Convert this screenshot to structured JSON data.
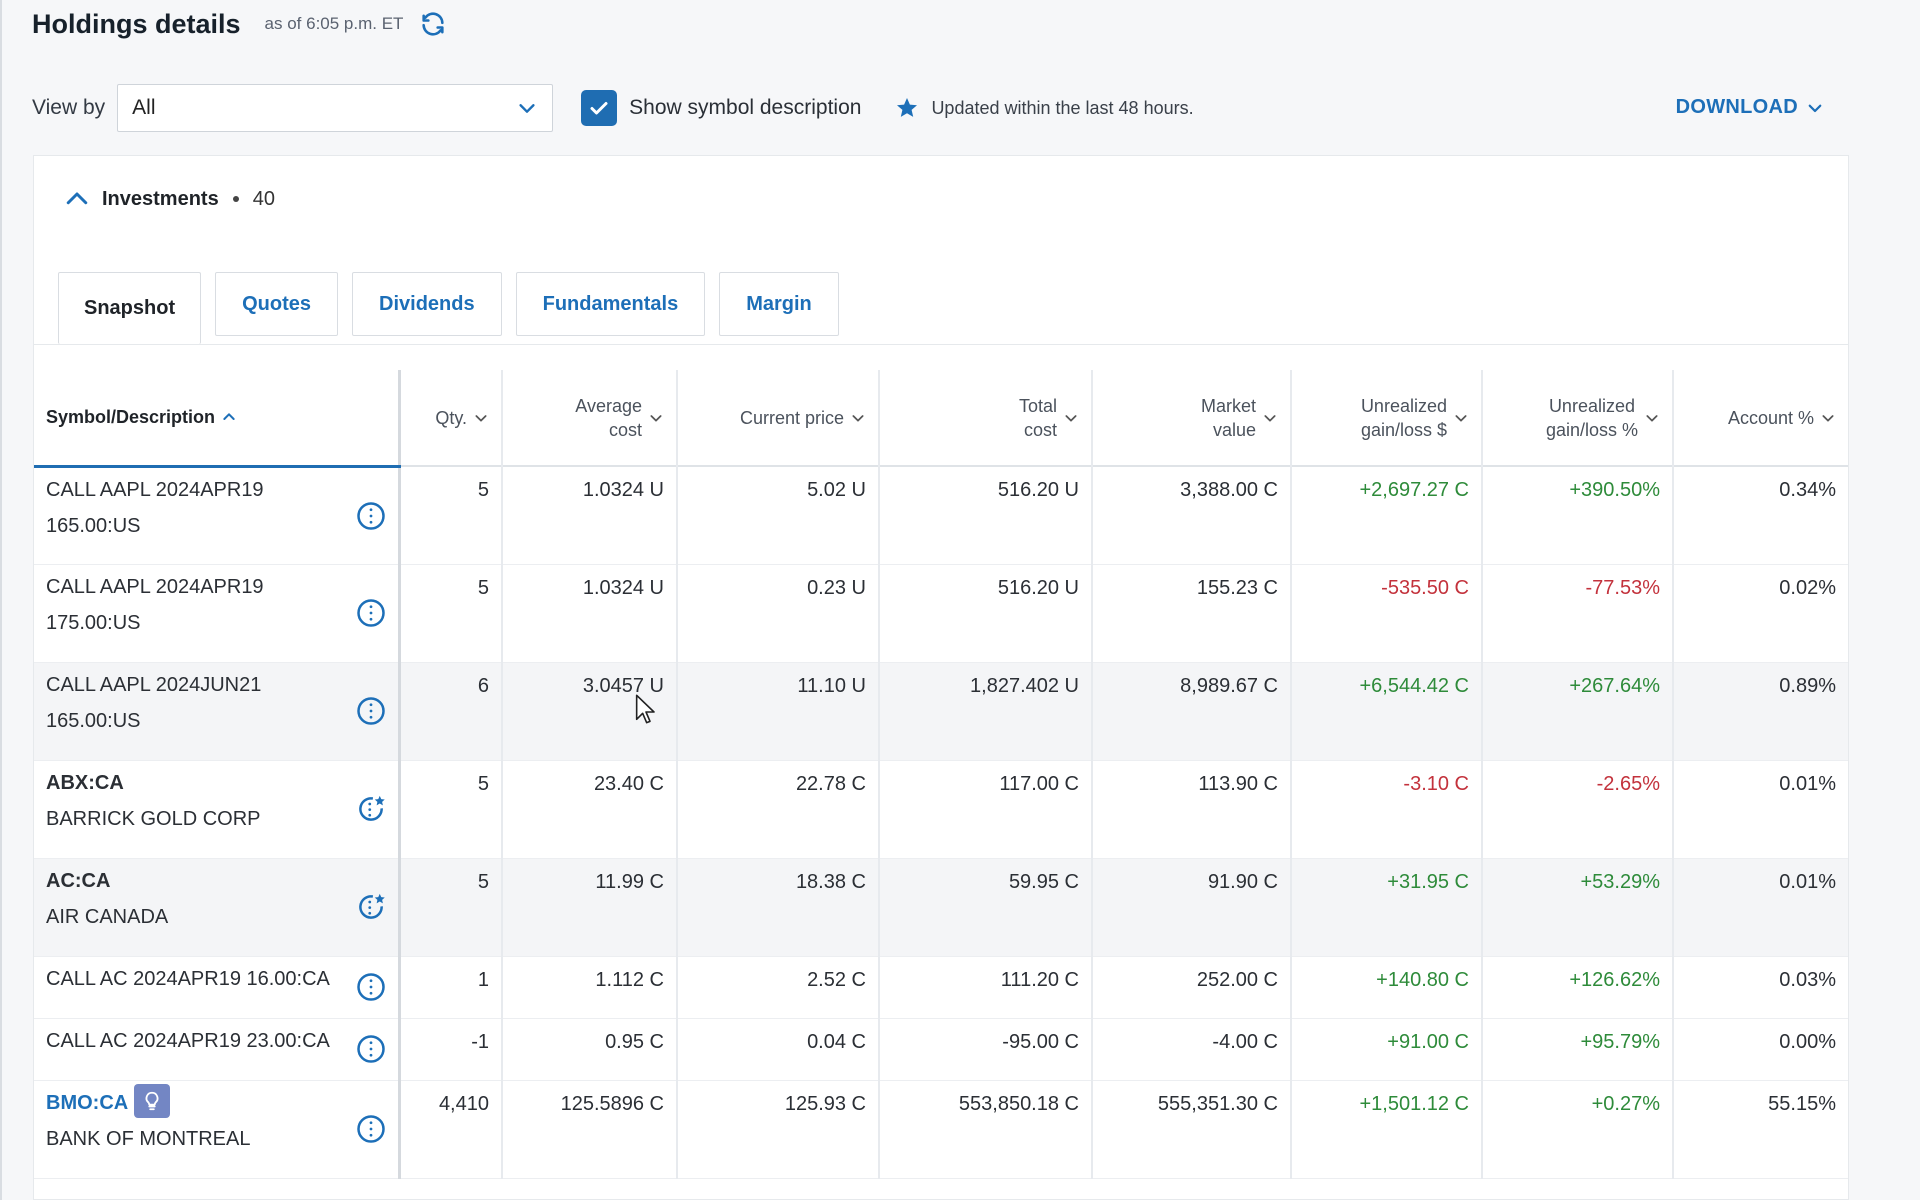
{
  "header": {
    "title": "Holdings details",
    "as_of": "as of 6:05 p.m. ET"
  },
  "toolbar": {
    "view_by_label": "View by",
    "view_by_value": "All",
    "show_symbol_description": "Show symbol description",
    "updated_note": "Updated within the last 48 hours.",
    "download": "DOWNLOAD"
  },
  "investments": {
    "title": "Investments",
    "count": "40"
  },
  "tabs": [
    {
      "label": "Snapshot",
      "active": true
    },
    {
      "label": "Quotes"
    },
    {
      "label": "Dividends"
    },
    {
      "label": "Fundamentals"
    },
    {
      "label": "Margin"
    }
  ],
  "columns": {
    "symbol": "Symbol/Description",
    "qty": "Qty.",
    "avg_cost_1": "Average",
    "avg_cost_2": "cost",
    "current_price": "Current price",
    "total_cost_1": "Total",
    "total_cost_2": "cost",
    "market_value_1": "Market",
    "market_value_2": "value",
    "ugl_dollar_1": "Unrealized",
    "ugl_dollar_2": "gain/loss $",
    "ugl_pct_1": "Unrealized",
    "ugl_pct_2": "gain/loss %",
    "account_pct": "Account %"
  },
  "rows": [
    {
      "line1": "CALL AAPL 2024APR19",
      "line2": "165.00:US",
      "qty": "5",
      "avg_cost": "1.0324 U",
      "current_price": "5.02 U",
      "total_cost": "516.20 U",
      "market_value": "3,388.00 C",
      "ugl_dollar": "+2,697.27 C",
      "ugl_pct": "+390.50%",
      "account_pct": "0.34%"
    },
    {
      "line1": "CALL AAPL 2024APR19",
      "line2": "175.00:US",
      "qty": "5",
      "avg_cost": "1.0324 U",
      "current_price": "0.23 U",
      "total_cost": "516.20 U",
      "market_value": "155.23 C",
      "ugl_dollar": "-535.50 C",
      "ugl_pct": "-77.53%",
      "account_pct": "0.02%"
    },
    {
      "line1": "CALL AAPL 2024JUN21",
      "line2": "165.00:US",
      "qty": "6",
      "avg_cost": "3.0457 U",
      "current_price": "11.10 U",
      "total_cost": "1,827.402 U",
      "market_value": "8,989.67 C",
      "ugl_dollar": "+6,544.42 C",
      "ugl_pct": "+267.64%",
      "account_pct": "0.89%"
    },
    {
      "line1": "ABX:CA",
      "line2": "BARRICK GOLD CORP",
      "qty": "5",
      "avg_cost": "23.40 C",
      "current_price": "22.78 C",
      "total_cost": "117.00 C",
      "market_value": "113.90 C",
      "ugl_dollar": "-3.10 C",
      "ugl_pct": "-2.65%",
      "account_pct": "0.01%"
    },
    {
      "line1": "AC:CA",
      "line2": "AIR CANADA",
      "qty": "5",
      "avg_cost": "11.99 C",
      "current_price": "18.38 C",
      "total_cost": "59.95 C",
      "market_value": "91.90 C",
      "ugl_dollar": "+31.95 C",
      "ugl_pct": "+53.29%",
      "account_pct": "0.01%"
    },
    {
      "line1": "CALL AC 2024APR19 16.00:CA",
      "qty": "1",
      "avg_cost": "1.112 C",
      "current_price": "2.52 C",
      "total_cost": "111.20 C",
      "market_value": "252.00 C",
      "ugl_dollar": "+140.80 C",
      "ugl_pct": "+126.62%",
      "account_pct": "0.03%"
    },
    {
      "line1": "CALL AC 2024APR19 23.00:CA",
      "qty": "-1",
      "avg_cost": "0.95 C",
      "current_price": "0.04 C",
      "total_cost": "-95.00 C",
      "market_value": "-4.00 C",
      "ugl_dollar": "+91.00 C",
      "ugl_pct": "+95.79%",
      "account_pct": "0.00%"
    },
    {
      "line1": "BMO:CA",
      "line2": "BANK OF MONTREAL",
      "qty": "4,410",
      "avg_cost": "125.5896 C",
      "current_price": "125.93 C",
      "total_cost": "553,850.18 C",
      "market_value": "555,351.30 C",
      "ugl_dollar": "+1,501.12 C",
      "ugl_pct": "+0.27%",
      "account_pct": "55.15%"
    }
  ],
  "icons": {
    "refresh": "refresh-icon",
    "view_select_chevron": "chevron-down-icon",
    "checkbox": "checkmark-icon",
    "updated": "star-icon",
    "collapse": "chevron-up-icon",
    "row_info": "info-icon",
    "row_info_star": "info-star-icon",
    "idea": "lightbulb-icon"
  },
  "colors": {
    "accent": "#1d6fb8",
    "gain": "#2e8b3a",
    "loss": "#c3323c",
    "idea_badge": "#7386c4"
  }
}
